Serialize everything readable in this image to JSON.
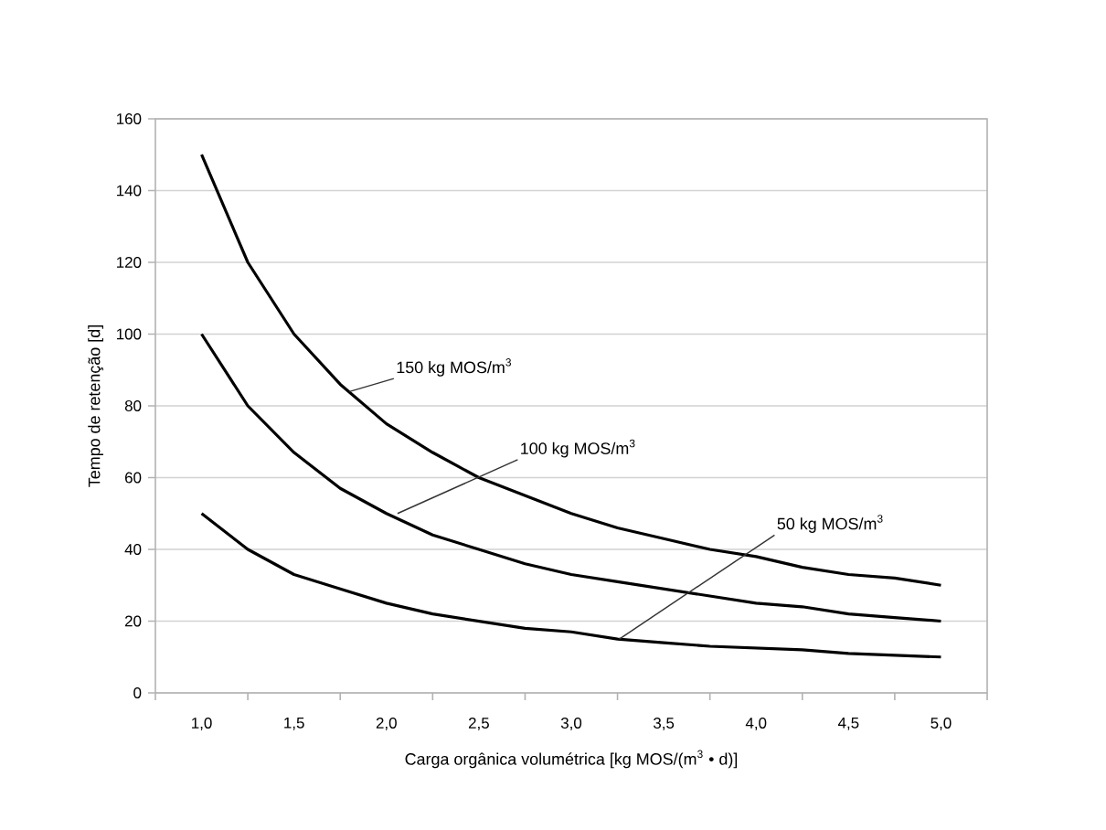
{
  "chart_data": {
    "type": "line",
    "xlabel": "Carga orgânica volumétrica [kg MOS/(m$^{3}$ • d)]",
    "ylabel": "Tempo de retenção [d]",
    "x": [
      1.0,
      1.25,
      1.5,
      1.75,
      2.0,
      2.25,
      2.5,
      2.75,
      3.0,
      3.25,
      3.5,
      3.75,
      4.0,
      4.25,
      4.5,
      4.75,
      5.0
    ],
    "series": [
      {
        "color": "#000000",
        "values": [
          150,
          120,
          100,
          86,
          75,
          67,
          60,
          55,
          50,
          46,
          43,
          40,
          38,
          35,
          33,
          32,
          30
        ]
      },
      {
        "color": "#000000",
        "values": [
          100,
          80,
          67,
          57,
          50,
          44,
          40,
          36,
          33,
          31,
          29,
          27,
          25,
          24,
          22,
          21,
          20
        ]
      },
      {
        "color": "#000000",
        "values": [
          50,
          40,
          33,
          29,
          25,
          22,
          20,
          18,
          17,
          15,
          14,
          13,
          12.5,
          12,
          11,
          10.5,
          10
        ]
      }
    ],
    "xlim": [
      0.75,
      5.25
    ],
    "xticks": [
      {
        "value": 0.75,
        "label": null
      },
      {
        "value": 1.0,
        "label": "1,0"
      },
      {
        "value": 1.25,
        "label": null
      },
      {
        "value": 1.5,
        "label": "1,5"
      },
      {
        "value": 1.75,
        "label": null
      },
      {
        "value": 2.0,
        "label": "2,0"
      },
      {
        "value": 2.25,
        "label": null
      },
      {
        "value": 2.5,
        "label": "2,5"
      },
      {
        "value": 2.75,
        "label": null
      },
      {
        "value": 3.0,
        "label": "3,0"
      },
      {
        "value": 3.25,
        "label": null
      },
      {
        "value": 3.5,
        "label": "3,5"
      },
      {
        "value": 3.75,
        "label": null
      },
      {
        "value": 4.0,
        "label": "4,0"
      },
      {
        "value": 4.25,
        "label": null
      },
      {
        "value": 4.5,
        "label": "4,5"
      },
      {
        "value": 4.75,
        "label": null
      },
      {
        "value": 5.0,
        "label": "5,0"
      },
      {
        "value": 5.25,
        "label": null
      }
    ],
    "ylim": [
      0,
      160
    ],
    "yticks": [
      0,
      20,
      40,
      60,
      80,
      100,
      120,
      140,
      160
    ],
    "grid": "y",
    "marker": "none",
    "line_style": "solid",
    "annotations": [
      {
        "text": "150 kg MOS/m$^{3}$",
        "x": 1.8,
        "y": 84
      },
      {
        "text": "100 kg MOS/m$^{3}$",
        "x": 2.06,
        "y": 50
      },
      {
        "text": "50 kg MOS/m$^{3}$",
        "x": 3.26,
        "y": 15
      }
    ]
  }
}
